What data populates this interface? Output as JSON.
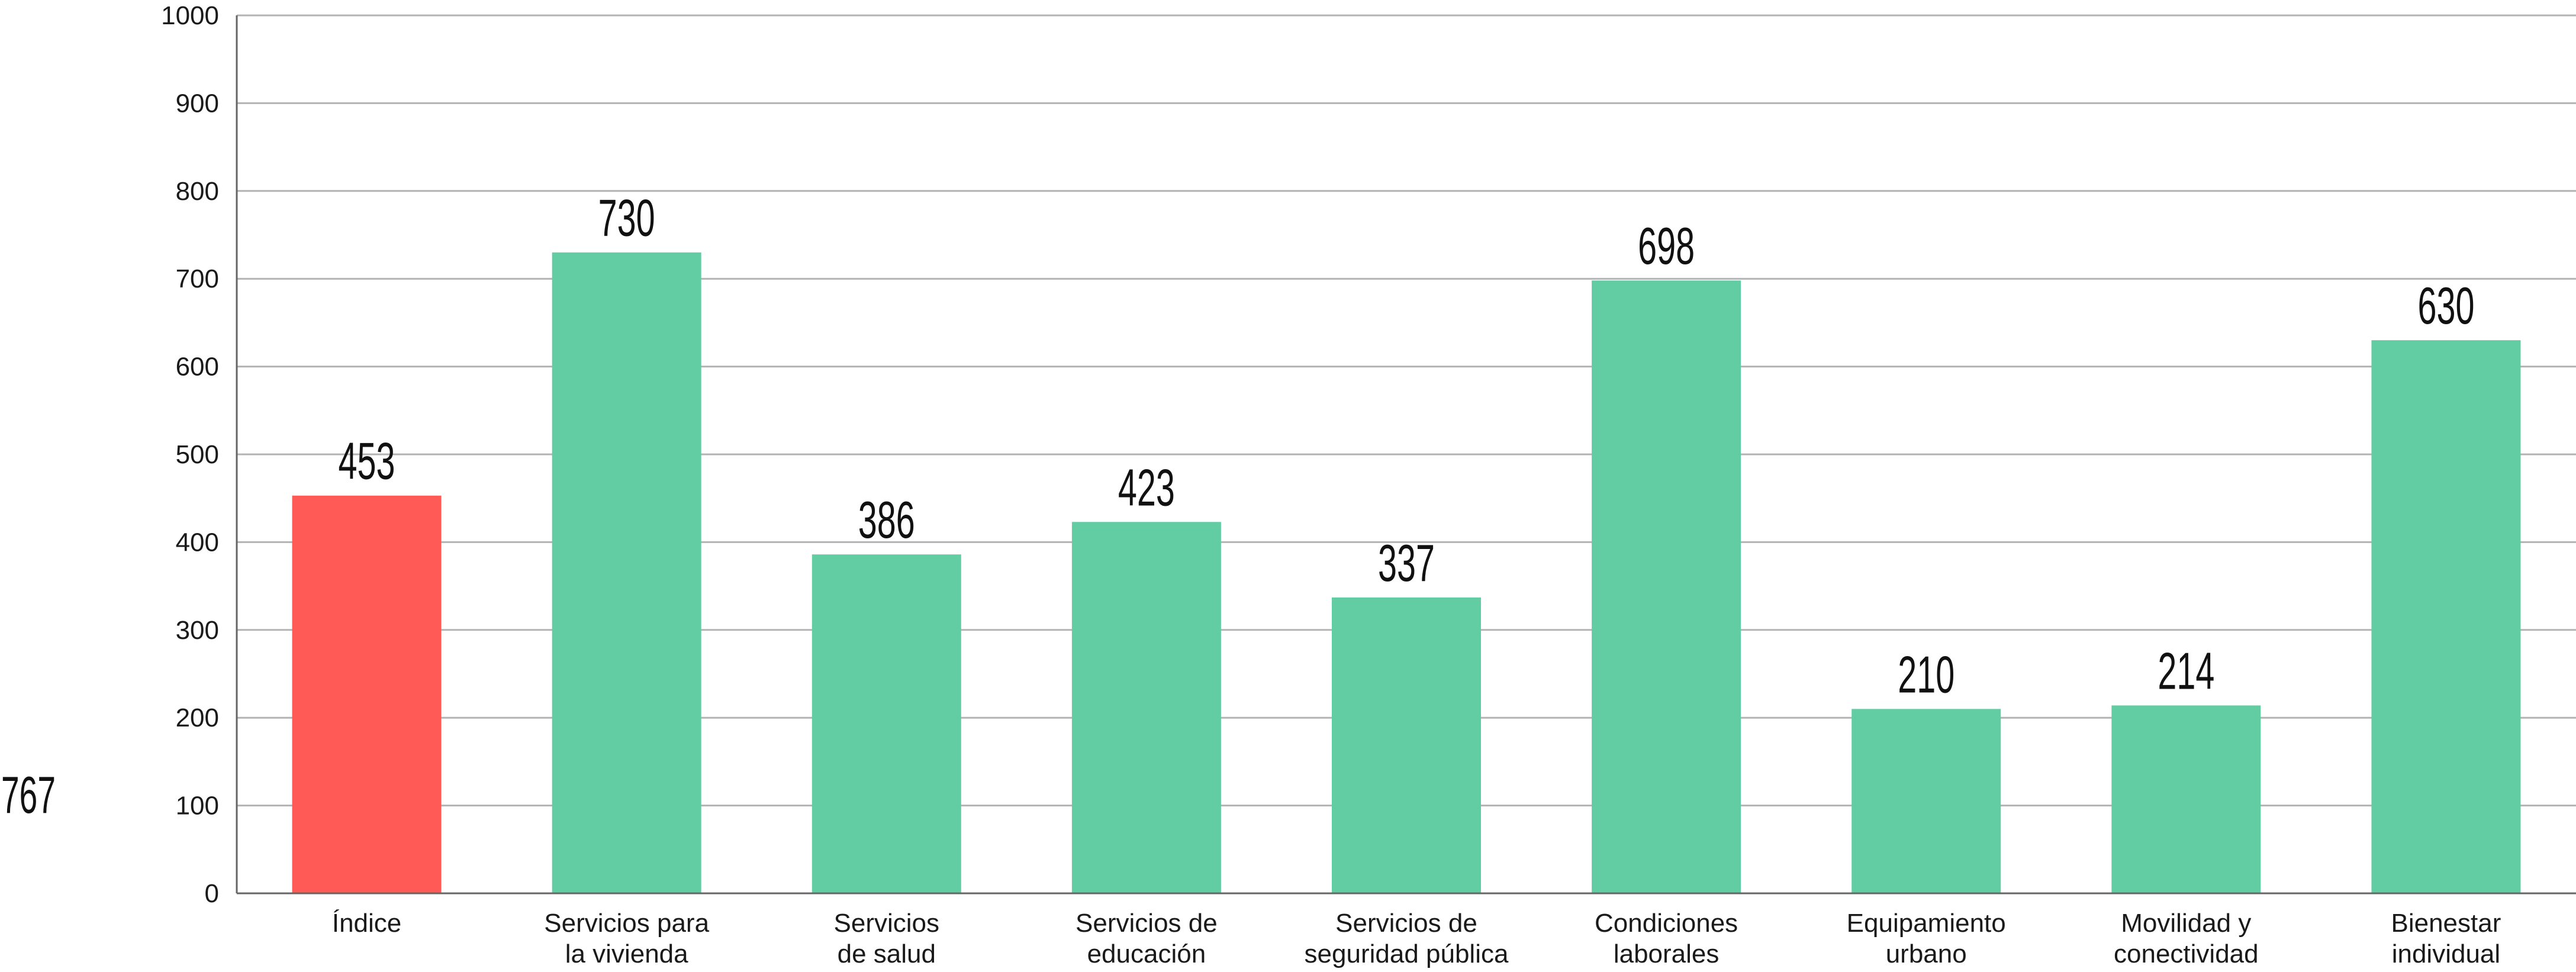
{
  "side_value": "767",
  "chart_data": {
    "type": "bar",
    "title": "",
    "xlabel": "",
    "ylabel": "",
    "ylim": [
      0,
      1000
    ],
    "yticks": [
      0,
      100,
      200,
      300,
      400,
      500,
      600,
      700,
      800,
      900,
      1000
    ],
    "grid": true,
    "categories": [
      [
        "Índice"
      ],
      [
        "Servicios para",
        "la vivienda"
      ],
      [
        "Servicios",
        "de salud"
      ],
      [
        "Servicios de",
        "educación"
      ],
      [
        "Servicios de",
        "seguridad pública"
      ],
      [
        "Condiciones",
        "laborales"
      ],
      [
        "Equipamiento",
        "urbano"
      ],
      [
        "Movilidad y",
        "conectividad"
      ],
      [
        "Bienestar",
        "individual"
      ]
    ],
    "values": [
      453,
      730,
      386,
      423,
      337,
      698,
      210,
      214,
      630
    ],
    "colors": [
      "#ff5a55",
      "#62cca2",
      "#62cca2",
      "#62cca2",
      "#62cca2",
      "#62cca2",
      "#62cca2",
      "#62cca2",
      "#62cca2"
    ],
    "grid_color": "#b3b3b3",
    "axis_color": "#666666"
  }
}
